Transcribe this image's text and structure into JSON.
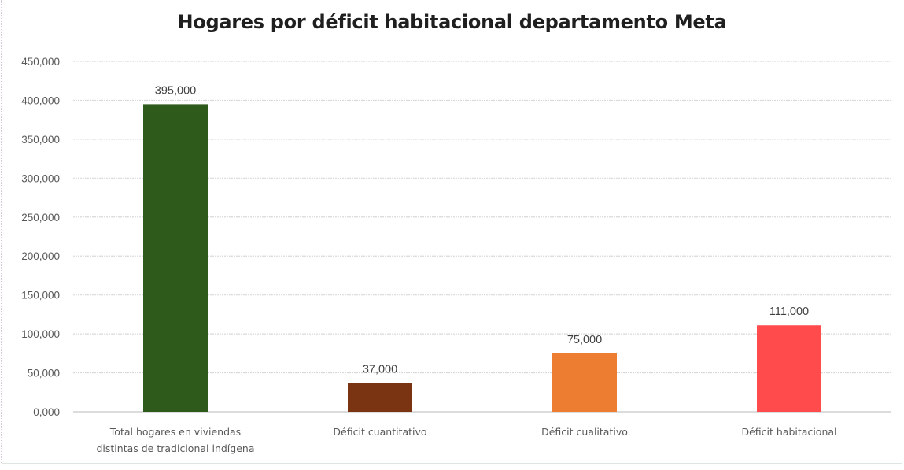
{
  "chart_data": {
    "type": "bar",
    "title": "Hogares por déficit habitacional departamento Meta",
    "xlabel": "",
    "ylabel": "",
    "ylim": [
      0,
      450000
    ],
    "ytick_step": 50000,
    "ytick_labels": [
      "0,000",
      "50,000",
      "100,000",
      "150,000",
      "200,000",
      "250,000",
      "300,000",
      "350,000",
      "400,000",
      "450,000"
    ],
    "grid": true,
    "legend": "none",
    "categories": [
      [
        "Total hogares en viviendas",
        "distintas de tradicional indígena"
      ],
      [
        "Déficit cuantitativo"
      ],
      [
        "Déficit cualitativo"
      ],
      [
        "Déficit habitacional"
      ]
    ],
    "values": [
      395000,
      37000,
      75000,
      111000
    ],
    "data_labels": [
      "395,000",
      "37,000",
      "75,000",
      "111,000"
    ],
    "colors": [
      "#2e5a1c",
      "#7b3412",
      "#ed7d31",
      "#ff4b4b"
    ]
  }
}
